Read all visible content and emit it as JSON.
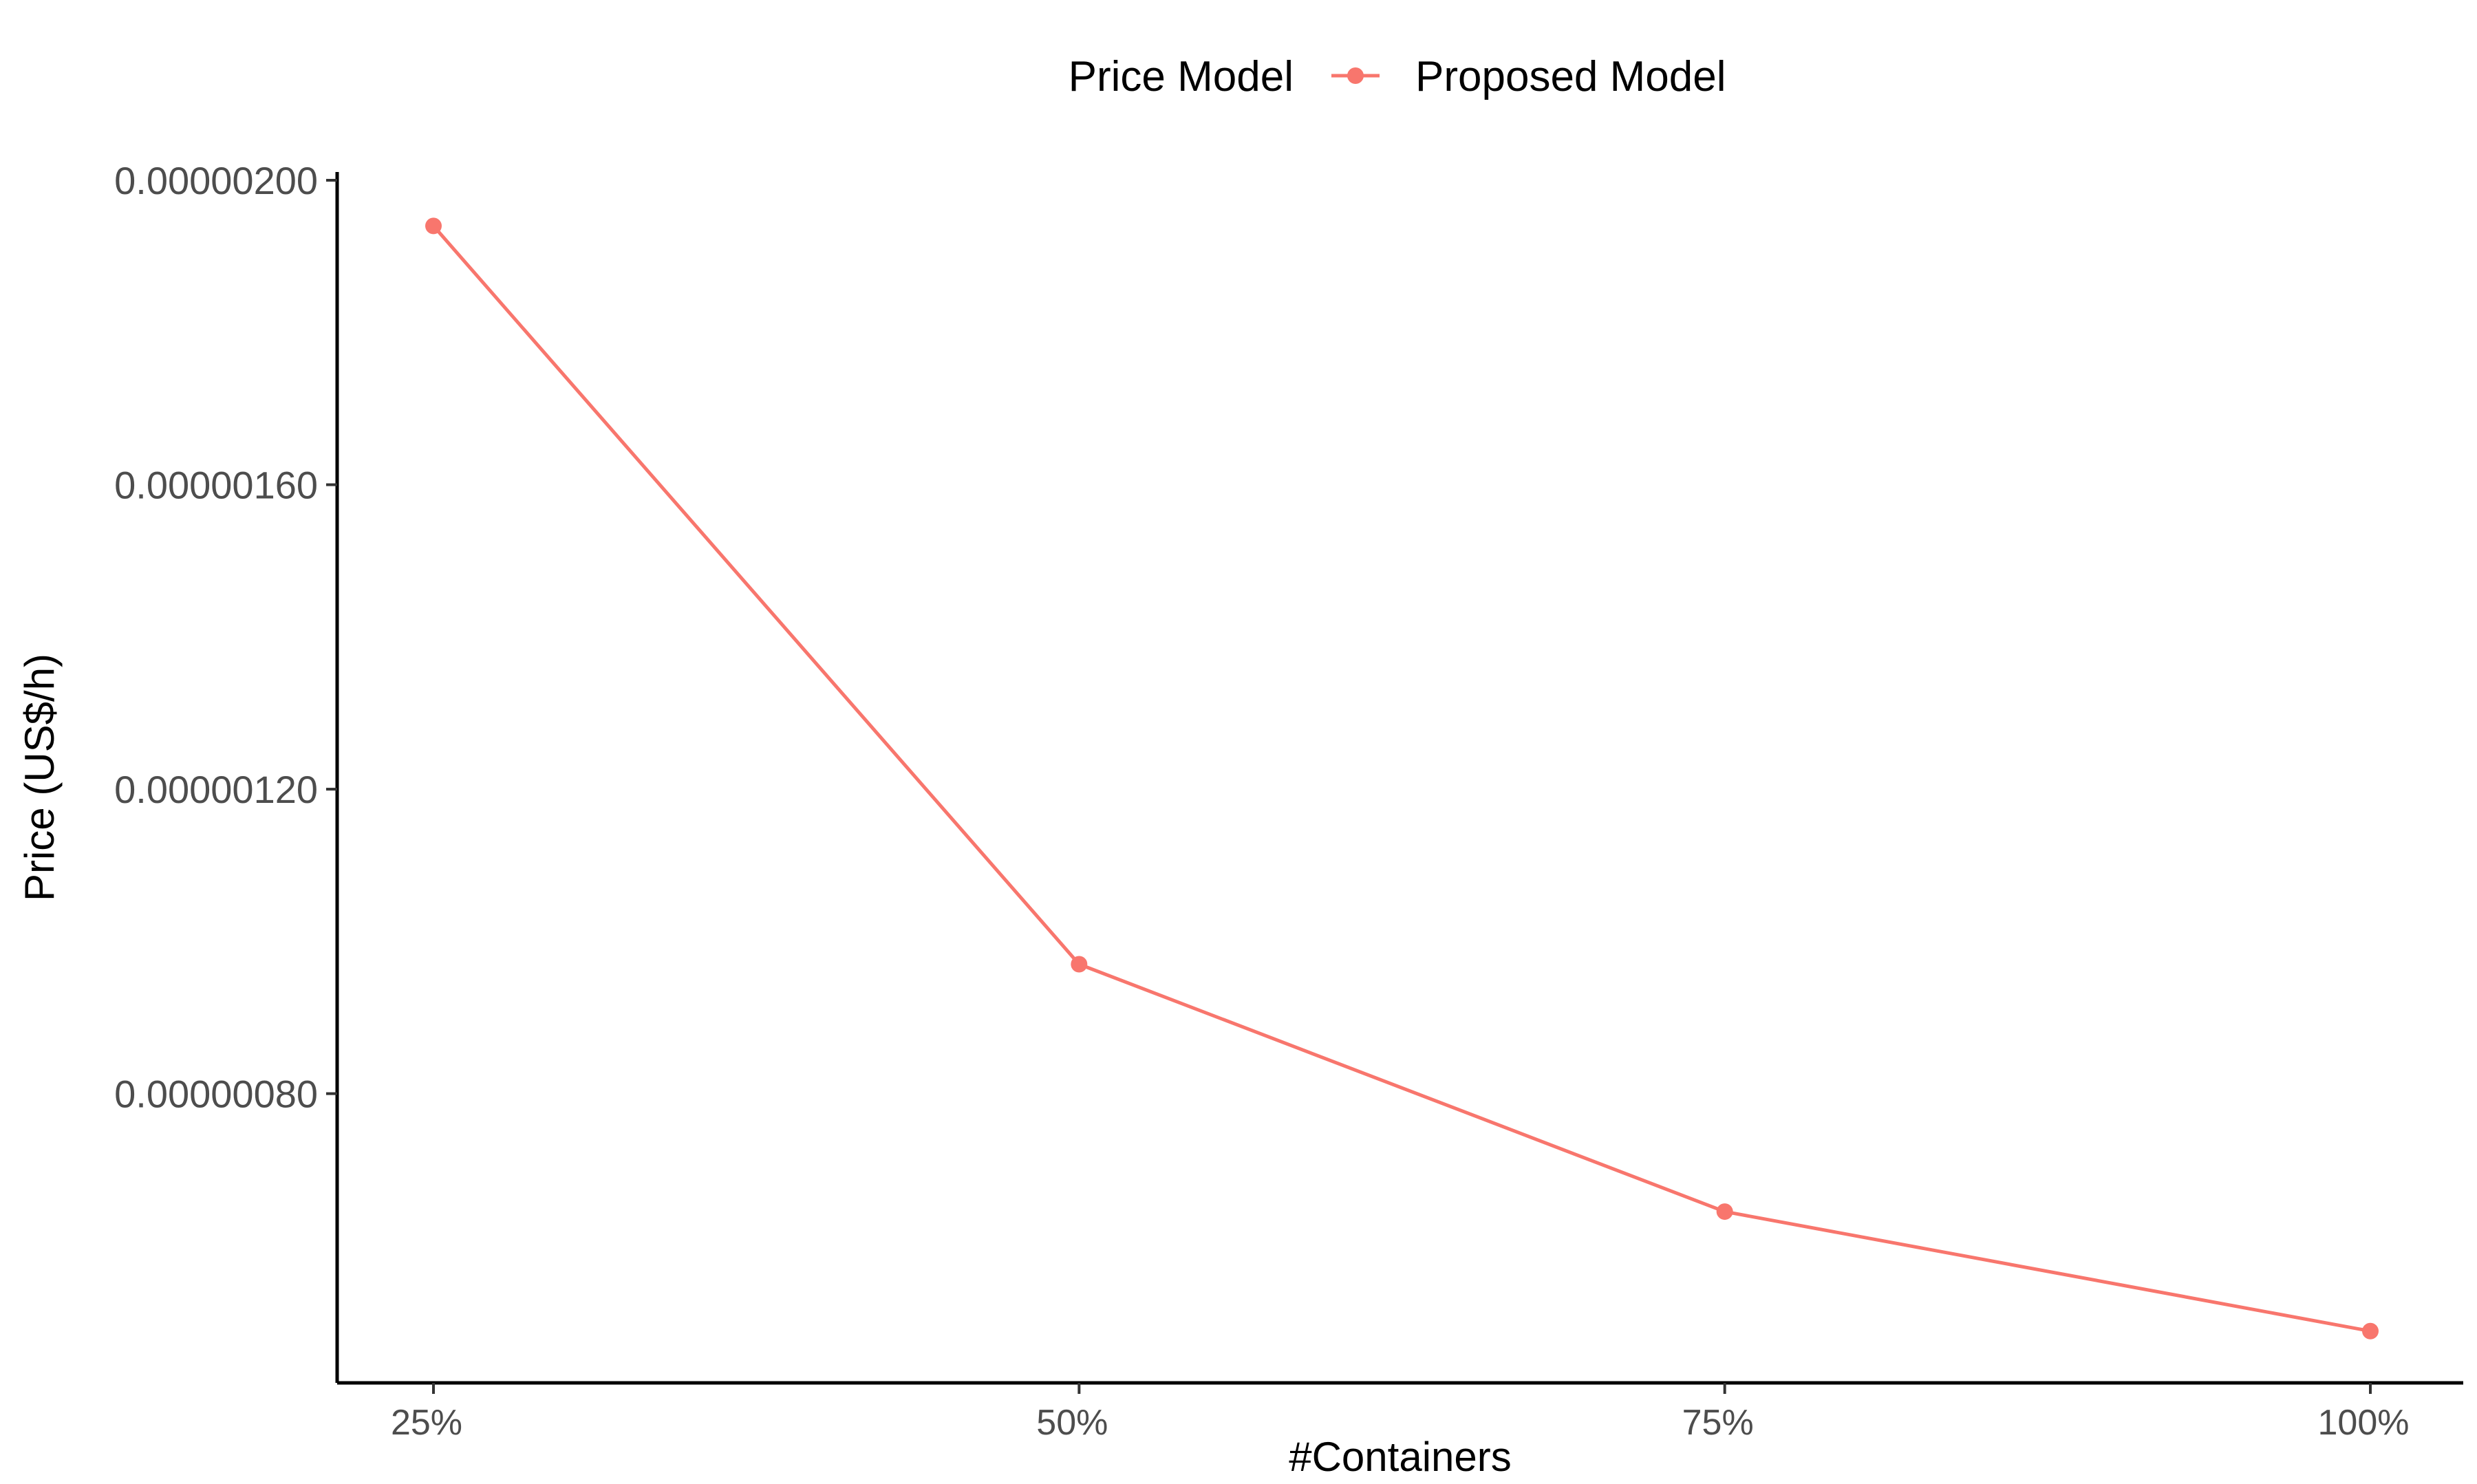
{
  "chart_data": {
    "type": "line",
    "xlabel": "#Containers",
    "ylabel": "Price (US$/h)",
    "categories": [
      "25%",
      "50%",
      "75%",
      "100%"
    ],
    "y_ticks": [
      "0.00000080",
      "0.00000120",
      "0.00000160",
      "0.00000200"
    ],
    "y_tick_values": [
      8e-07,
      1.2e-06,
      1.6e-06,
      2e-06
    ],
    "ylim": [
      4.2e-07,
      2e-06
    ],
    "grid": false,
    "legend": {
      "position": "top",
      "title": "Price Model"
    },
    "series": [
      {
        "name": "Proposed Model",
        "color": "#F8766D",
        "values": [
          1.94e-06,
          9.7e-07,
          6.45e-07,
          4.88e-07
        ]
      }
    ]
  }
}
